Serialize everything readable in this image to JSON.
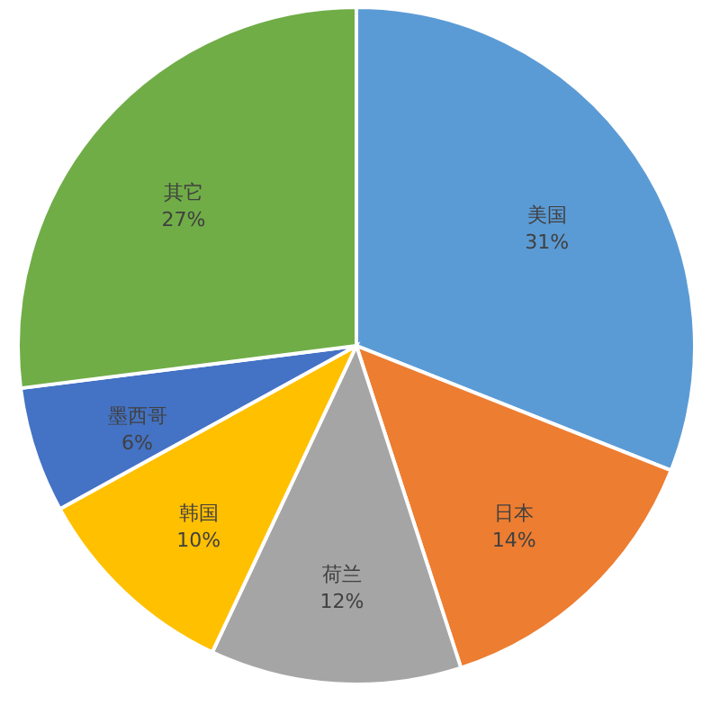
{
  "chart_data": {
    "type": "pie",
    "categories": [
      "美国",
      "日本",
      "荷兰",
      "韩国",
      "墨西哥",
      "其它"
    ],
    "values": [
      31,
      14,
      12,
      10,
      6,
      27
    ],
    "value_labels": [
      "31%",
      "14%",
      "12%",
      "10%",
      "6%",
      "27%"
    ],
    "colors": [
      "#5b9bd5",
      "#ed7d31",
      "#a5a5a5",
      "#ffc000",
      "#4472c4",
      "#70ad47"
    ]
  }
}
